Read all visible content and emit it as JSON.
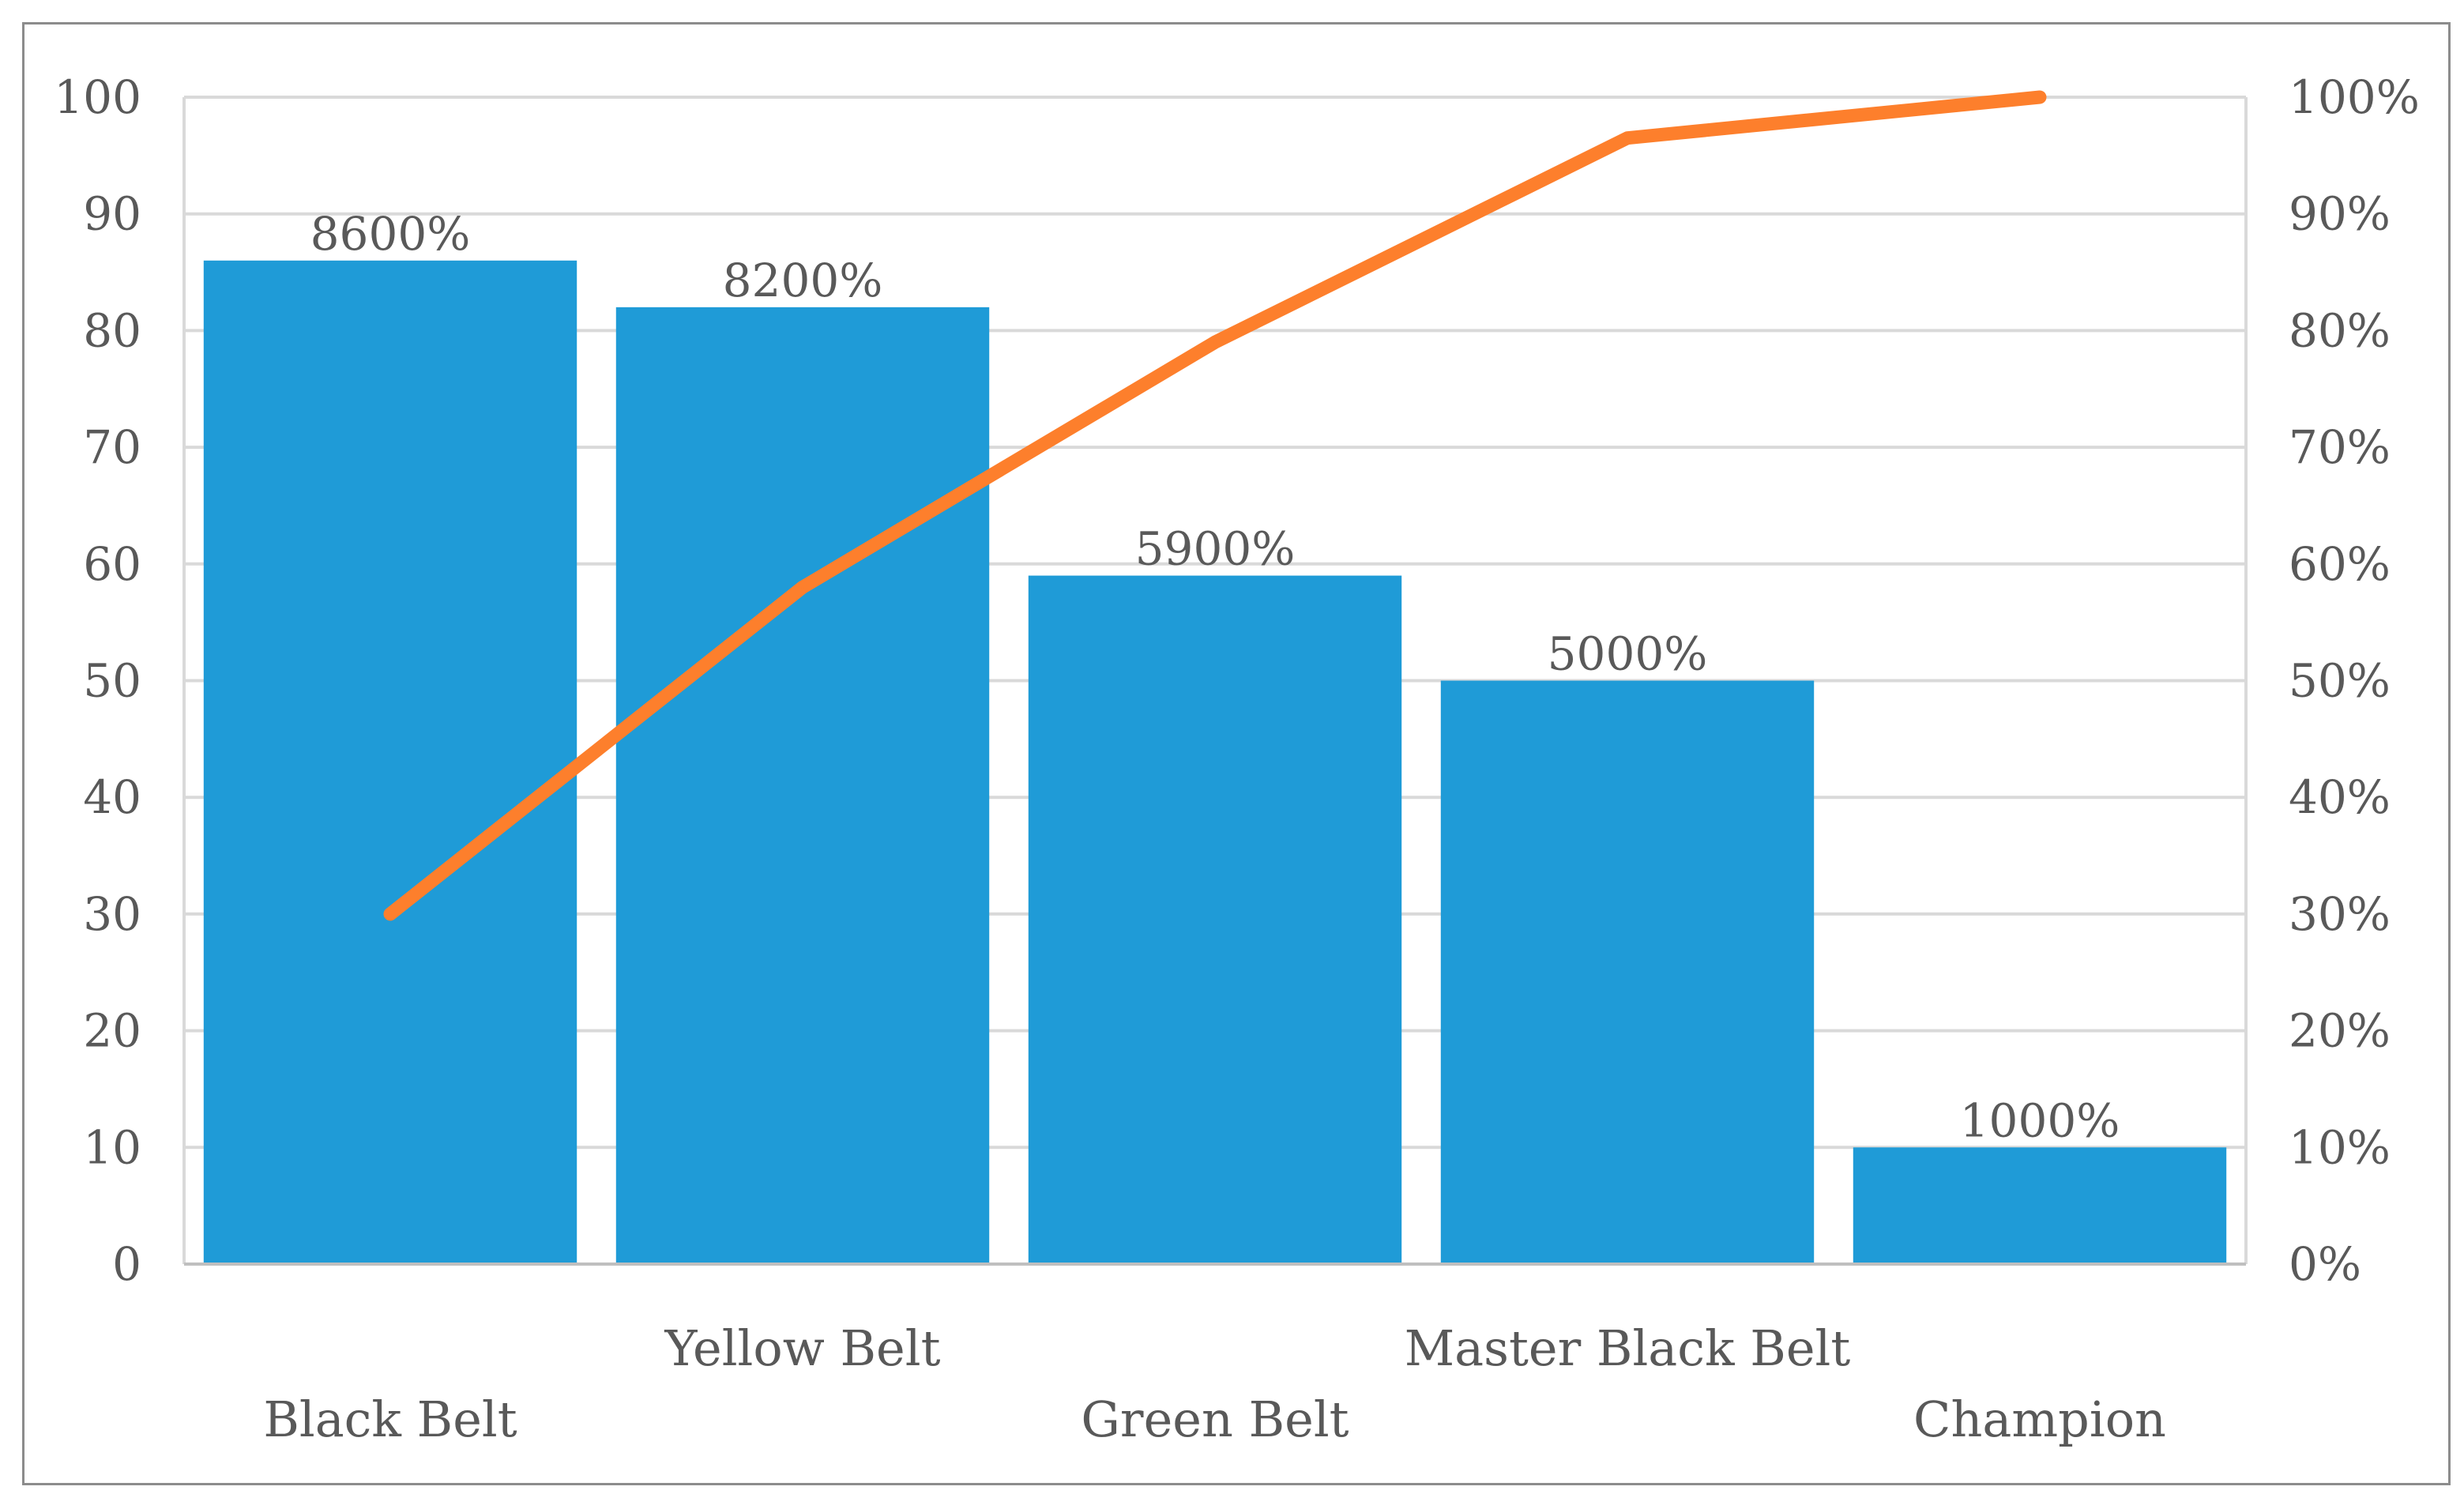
{
  "chart_data": {
    "type": "bar",
    "categories": [
      "Black Belt",
      "Yellow Belt",
      "Green Belt",
      "Master Black Belt",
      "Champion"
    ],
    "series": [
      {
        "type": "bar",
        "values": [
          86,
          82,
          59,
          50,
          10
        ],
        "data_labels": [
          "8600%",
          "8200%",
          "5900%",
          "5000%",
          "1000%"
        ],
        "color": "#1f9bd7"
      },
      {
        "type": "line",
        "axis": "secondary",
        "values": [
          0.3,
          0.58,
          0.79,
          0.965,
          1.0
        ],
        "color": "#fd7f2c"
      }
    ],
    "title": "",
    "xlabel": "",
    "ylabel": "",
    "ylim": [
      0,
      100
    ],
    "y_ticks": [
      "0",
      "10",
      "20",
      "30",
      "40",
      "50",
      "60",
      "70",
      "80",
      "90",
      "100"
    ],
    "y2lim": [
      0,
      1
    ],
    "y2_ticks": [
      "0%",
      "10%",
      "20%",
      "30%",
      "40%",
      "50%",
      "60%",
      "70%",
      "80%",
      "90%",
      "100%"
    ],
    "grid": true,
    "legend": "none",
    "gridline_color": "#d9d9d9"
  }
}
